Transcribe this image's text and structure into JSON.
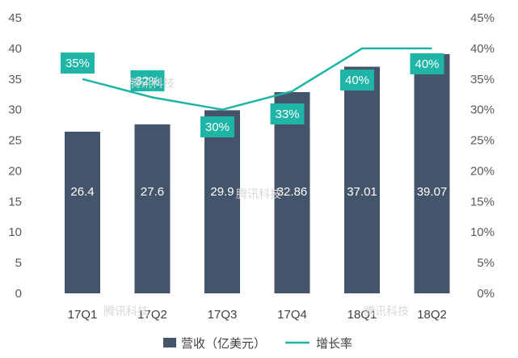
{
  "chart_data": {
    "type": "bar",
    "categories": [
      "17Q1",
      "17Q2",
      "17Q3",
      "17Q4",
      "18Q1",
      "18Q2"
    ],
    "series": [
      {
        "name": "营收（亿美元）",
        "type": "bar",
        "axis": "left",
        "values": [
          26.4,
          27.6,
          29.9,
          32.86,
          37.01,
          39.07
        ],
        "labels": [
          "26.4",
          "27.6",
          "29.9",
          "32.86",
          "37.01",
          "39.07"
        ]
      },
      {
        "name": "增长率",
        "type": "line",
        "axis": "right",
        "values": [
          35,
          32,
          30,
          33,
          40,
          40
        ],
        "labels": [
          "35%",
          "32%",
          "30%",
          "33%",
          "40%",
          "40%"
        ]
      }
    ],
    "y_left": {
      "min": 0,
      "max": 45,
      "step": 5,
      "ticks": [
        "0",
        "5",
        "10",
        "15",
        "20",
        "25",
        "30",
        "35",
        "40",
        "45"
      ]
    },
    "y_right": {
      "min": 0,
      "max": 45,
      "step": 5,
      "ticks": [
        "0%",
        "5%",
        "10%",
        "15%",
        "20%",
        "25%",
        "30%",
        "35%",
        "40%",
        "45%"
      ]
    },
    "legend": {
      "position": "bottom"
    },
    "colors": {
      "bar": "#44546a",
      "line": "#1fb5a6",
      "label_box": "#1fb5a6",
      "grid": "none"
    }
  },
  "watermark": "腾讯科技"
}
